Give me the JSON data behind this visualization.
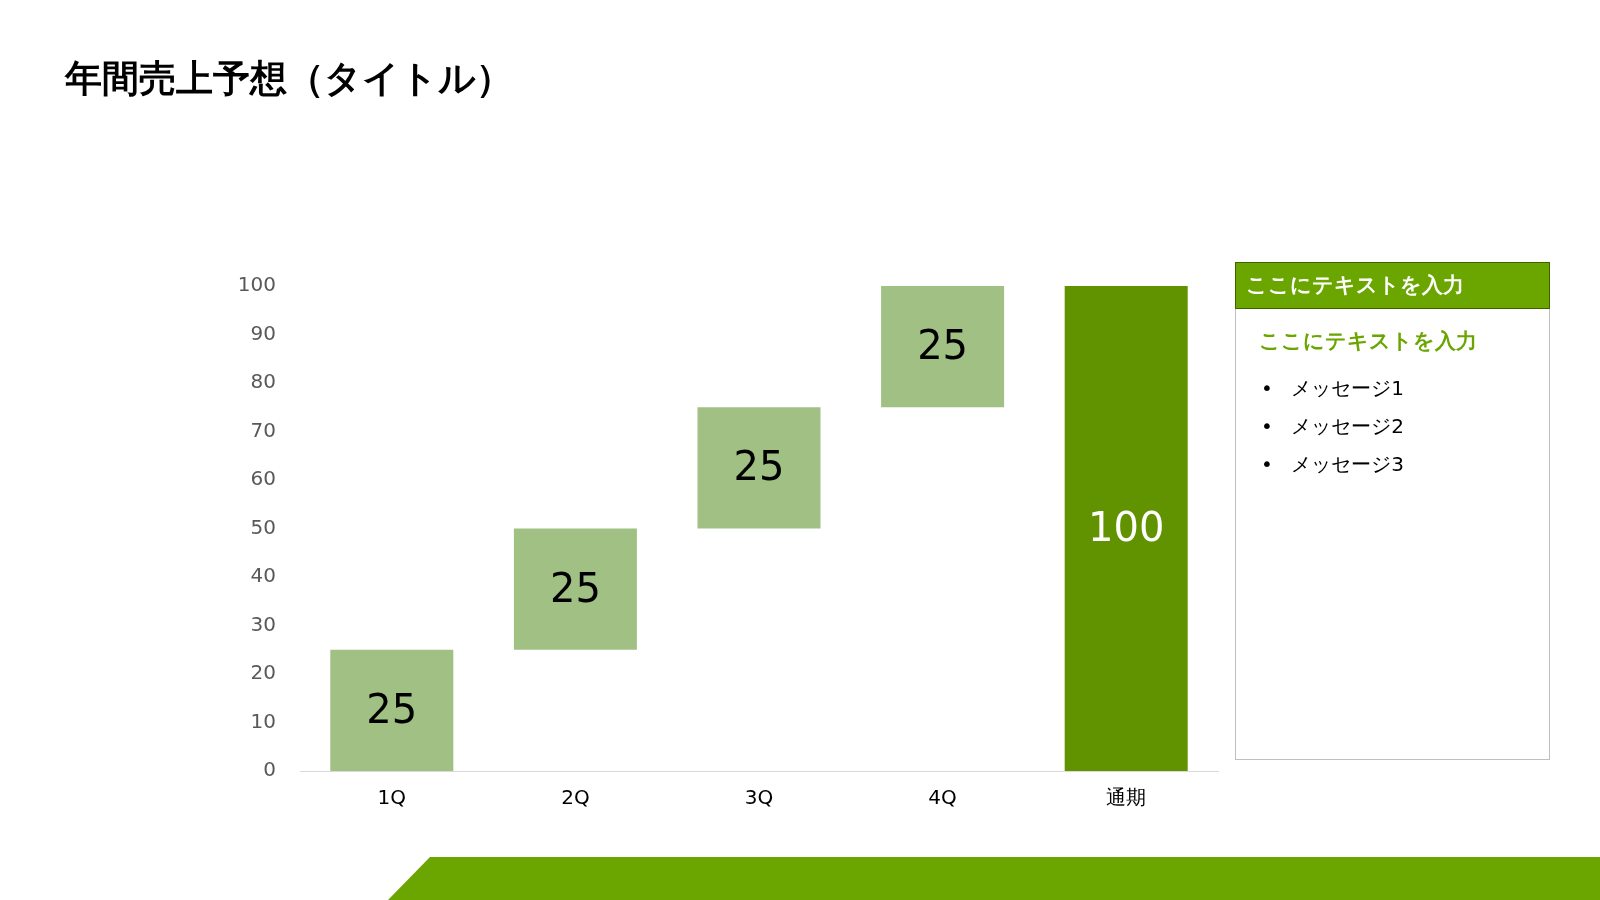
{
  "chart_data": {
    "type": "bar",
    "title": "年間売上予想（タイトル）",
    "categories": [
      "1Q",
      "2Q",
      "3Q",
      "4Q",
      "通期"
    ],
    "values": [
      25,
      25,
      25,
      25,
      100
    ],
    "base": [
      0,
      25,
      50,
      75,
      0
    ],
    "colors": [
      "#a0c084",
      "#a0c084",
      "#a0c084",
      "#a0c084",
      "#619300"
    ],
    "ylim": [
      0,
      100
    ],
    "yticks": [
      0,
      10,
      20,
      30,
      40,
      50,
      60,
      70,
      80,
      90,
      100
    ],
    "data_labels": true,
    "annotations": [
      "ここにテキストを入力",
      "ここにテキストを入力",
      "• メッセージ1",
      "• メッセージ2",
      "• メッセージ3"
    ]
  }
}
